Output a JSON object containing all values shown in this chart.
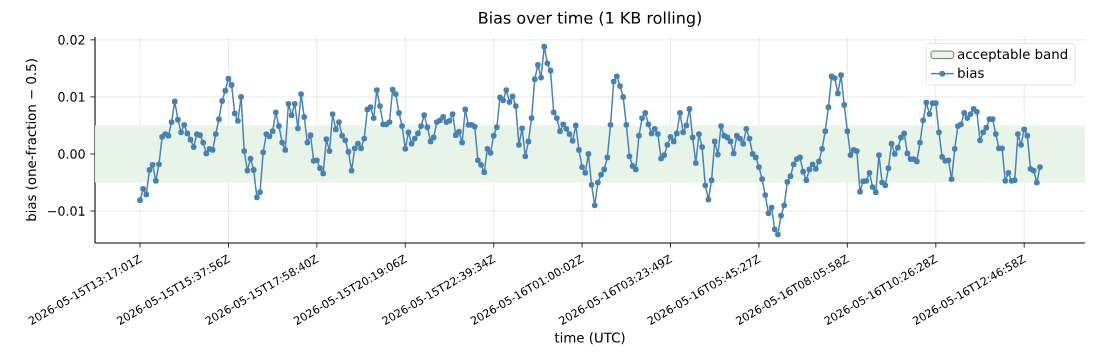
{
  "chart_data": {
    "type": "line",
    "title": "Bias over time (1 KB rolling)",
    "xlabel": "time (UTC)",
    "ylabel": "bias (one-fraction − 0.5)",
    "ylim": [
      -0.0156,
      0.0205
    ],
    "yticks": [
      {
        "value": -0.01,
        "label": "−0.01"
      },
      {
        "value": 0,
        "label": "0.00"
      },
      {
        "value": 0.01,
        "label": "0.01"
      },
      {
        "value": 0.02,
        "label": "0.02"
      }
    ],
    "bands": [
      {
        "axis": "y",
        "from": -0.005,
        "to": 0.005,
        "label": "acceptable band",
        "color": "#e9f4e9"
      }
    ],
    "grid": true,
    "legend": "top right",
    "marker": "circle",
    "line_style": "solid",
    "categories": [
      "2026-05-15T13:17:01Z",
      null,
      null,
      null,
      null,
      null,
      null,
      null,
      null,
      null,
      null,
      null,
      null,
      null,
      null,
      null,
      null,
      null,
      null,
      null,
      null,
      null,
      null,
      null,
      null,
      null,
      null,
      null,
      "2026-05-15T15:37:56Z",
      null,
      null,
      null,
      null,
      null,
      null,
      null,
      null,
      null,
      null,
      null,
      null,
      null,
      null,
      null,
      null,
      null,
      null,
      null,
      null,
      null,
      null,
      null,
      null,
      null,
      null,
      null,
      "2026-05-15T17:58:40Z",
      null,
      null,
      null,
      null,
      null,
      null,
      null,
      null,
      null,
      null,
      null,
      null,
      null,
      null,
      null,
      null,
      null,
      null,
      null,
      null,
      null,
      null,
      null,
      null,
      null,
      null,
      null,
      "2026-05-15T20:19:06Z",
      null,
      null,
      null,
      null,
      null,
      null,
      null,
      null,
      null,
      null,
      null,
      null,
      null,
      null,
      null,
      null,
      null,
      null,
      null,
      null,
      null,
      null,
      null,
      null,
      null,
      null,
      null,
      "2026-05-15T22:39:34Z",
      null,
      null,
      null,
      null,
      null,
      null,
      null,
      null,
      null,
      null,
      null,
      null,
      null,
      null,
      null,
      null,
      null,
      null,
      null,
      null,
      null,
      null,
      null,
      null,
      null,
      null,
      null,
      "2026-05-16T01:00:02Z",
      null,
      null,
      null,
      null,
      null,
      null,
      null,
      null,
      null,
      null,
      null,
      null,
      null,
      null,
      null,
      null,
      null,
      null,
      null,
      null,
      null,
      null,
      null,
      null,
      null,
      null,
      null,
      "2026-05-16T03:23:49Z",
      null,
      null,
      null,
      null,
      null,
      null,
      null,
      null,
      null,
      null,
      null,
      null,
      null,
      null,
      null,
      null,
      null,
      null,
      null,
      null,
      null,
      null,
      null,
      null,
      null,
      null,
      null,
      "2026-05-16T05:45:27Z",
      null,
      null,
      null,
      null,
      null,
      null,
      null,
      null,
      null,
      null,
      null,
      null,
      null,
      null,
      null,
      null,
      null,
      null,
      null,
      null,
      null,
      null,
      null,
      null,
      null,
      null,
      null,
      "2026-05-16T08:05:58Z",
      null,
      null,
      null,
      null,
      null,
      null,
      null,
      null,
      null,
      null,
      null,
      null,
      null,
      null,
      null,
      null,
      null,
      null,
      null,
      null,
      null,
      null,
      null,
      null,
      null,
      null,
      null,
      "2026-05-16T10:26:28Z",
      null,
      null,
      null,
      null,
      null,
      null,
      null,
      null,
      null,
      null,
      null,
      null,
      null,
      null,
      null,
      null,
      null,
      null,
      null,
      null,
      null,
      null,
      null,
      null,
      null,
      null,
      null,
      "2026-05-16T12:46:58Z",
      null,
      null,
      null,
      null,
      null
    ],
    "series": [
      {
        "name": "bias",
        "color": "#4682b4",
        "values": [
          -0.0081,
          -0.0061,
          -0.0071,
          -0.0028,
          -0.0019,
          -0.0047,
          -0.0018,
          0.003,
          0.0035,
          0.0032,
          0.0056,
          0.0092,
          0.006,
          0.0038,
          0.0051,
          0.0036,
          0.0025,
          0.0012,
          0.0035,
          0.0033,
          0.002,
          0.0001,
          0.0009,
          0.0007,
          0.0035,
          0.0061,
          0.0093,
          0.0111,
          0.0132,
          0.0121,
          0.0071,
          0.0058,
          0.01,
          0.0005,
          -0.0029,
          -0.0008,
          -0.0028,
          -0.0076,
          -0.0067,
          0.0003,
          0.0035,
          0.0031,
          0.004,
          0.0073,
          0.0049,
          0.002,
          0.0007,
          0.0088,
          0.0068,
          0.0088,
          0.0045,
          0.0105,
          0.0065,
          0.002,
          0.0033,
          -0.0012,
          -0.0011,
          -0.0025,
          -0.0034,
          0.0026,
          0.0005,
          0.007,
          0.0043,
          0.0056,
          0.0032,
          0.0024,
          0.0004,
          -0.0029,
          0.001,
          0.0018,
          0.001,
          0.0027,
          0.0078,
          0.0082,
          0.0063,
          0.0112,
          0.0084,
          0.0052,
          0.0052,
          0.0056,
          0.0113,
          0.0105,
          0.0072,
          0.0049,
          0.0009,
          0.0038,
          0.0018,
          0.0027,
          0.0036,
          0.0049,
          0.0068,
          0.0047,
          0.0022,
          0.0029,
          0.0056,
          0.0059,
          0.0065,
          0.0056,
          0.0058,
          0.007,
          0.0033,
          0.0039,
          0.002,
          0.0078,
          0.0051,
          0.0051,
          0.0048,
          -0.0011,
          -0.0019,
          -0.0032,
          0.0009,
          0.0002,
          0.0032,
          0.0047,
          0.0099,
          0.0094,
          0.0112,
          0.0091,
          0.0101,
          0.0084,
          0.0016,
          0.0045,
          -0.0004,
          0.0022,
          0.0063,
          0.0131,
          0.0156,
          0.0134,
          0.0188,
          0.0159,
          0.0146,
          0.0073,
          0.0063,
          0.004,
          0.0052,
          0.0044,
          0.0035,
          0.0023,
          0.005,
          0.0007,
          -0.0023,
          -0.0033,
          0.0,
          -0.0054,
          -0.009,
          -0.005,
          -0.0036,
          -0.0027,
          -0.0006,
          0.0051,
          0.0127,
          0.0136,
          0.0119,
          0.01,
          0.0051,
          -0.0004,
          -0.0021,
          -0.0027,
          0.0032,
          0.0063,
          0.0072,
          0.0052,
          0.0036,
          0.0044,
          0.0035,
          -0.0008,
          -0.0002,
          0.0016,
          0.003,
          0.0022,
          0.0036,
          0.0072,
          0.0038,
          0.005,
          0.0079,
          0.0029,
          -0.0016,
          0.0035,
          0.0012,
          -0.0055,
          -0.008,
          -0.0046,
          0.0022,
          -0.0001,
          0.0049,
          0.0032,
          0.0029,
          0.0022,
          0.0001,
          0.0032,
          0.0027,
          0.0018,
          0.0044,
          0.0027,
          0.0,
          -0.0006,
          -0.0023,
          -0.0044,
          -0.0072,
          -0.0104,
          -0.0094,
          -0.0132,
          -0.0141,
          -0.0108,
          -0.009,
          -0.0049,
          -0.0039,
          -0.0018,
          -0.0009,
          -0.0006,
          -0.0031,
          -0.0046,
          -0.0027,
          -0.0018,
          -0.0026,
          -0.0013,
          0.0009,
          0.004,
          0.0082,
          0.0136,
          0.0133,
          0.0106,
          0.0138,
          0.0086,
          0.004,
          -0.0002,
          0.0007,
          0.0005,
          -0.0066,
          -0.0048,
          -0.0047,
          -0.0033,
          -0.0058,
          -0.0067,
          -0.0002,
          -0.005,
          -0.0055,
          -0.0025,
          0.0018,
          0.0,
          0.0011,
          0.0029,
          0.0036,
          0.0001,
          -0.0009,
          -0.0009,
          -0.0013,
          0.002,
          0.0059,
          0.009,
          0.007,
          0.0089,
          0.0089,
          0.0038,
          -0.0005,
          -0.0012,
          -0.0011,
          -0.0044,
          0.0009,
          0.0049,
          0.0052,
          0.0072,
          0.0063,
          0.007,
          0.0079,
          0.0074,
          0.0024,
          0.0038,
          0.0046,
          0.0061,
          0.0061,
          0.0035,
          0.001,
          0.001,
          -0.0047,
          -0.0033,
          -0.0047,
          -0.0046,
          0.0035,
          0.0016,
          0.0043,
          0.0032,
          -0.0026,
          -0.0029,
          -0.005,
          -0.0023
        ]
      }
    ]
  }
}
